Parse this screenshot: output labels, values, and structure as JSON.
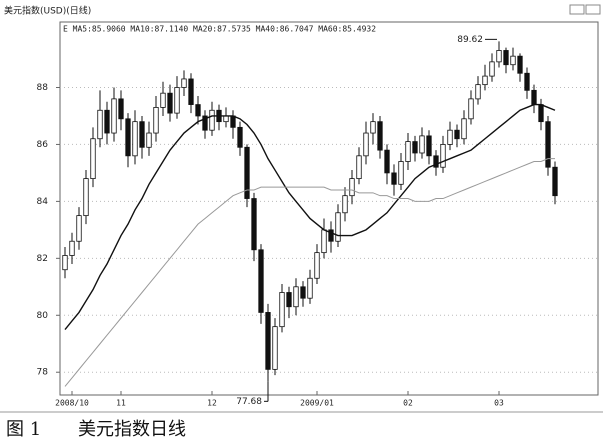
{
  "chart_data": {
    "type": "candlestick",
    "title": "美元指数(USD)(日线)",
    "legend_text": "E MA5:85.9060 MA10:87.1140 MA20:87.5735 MA40:86.7047 MA60:85.4932",
    "caption": "图 1",
    "caption_title": "美元指数日线",
    "categories": [
      null,
      "2008/10",
      null,
      null,
      null,
      null,
      null,
      null,
      "11",
      null,
      null,
      null,
      null,
      null,
      null,
      null,
      null,
      null,
      null,
      null,
      null,
      "12",
      null,
      null,
      null,
      null,
      null,
      null,
      null,
      null,
      null,
      null,
      null,
      null,
      null,
      null,
      "2009/01",
      null,
      null,
      null,
      null,
      null,
      null,
      null,
      null,
      null,
      null,
      null,
      null,
      "02",
      null,
      null,
      null,
      null,
      null,
      null,
      null,
      null,
      null,
      null,
      null,
      null,
      "03",
      null,
      null,
      null,
      null,
      null,
      null,
      null,
      null
    ],
    "open": [
      81.6,
      82.1,
      82.6,
      83.5,
      84.8,
      86.2,
      87.2,
      86.4,
      87.6,
      86.9,
      85.6,
      86.8,
      85.9,
      86.4,
      87.3,
      87.8,
      87.1,
      88.0,
      88.3,
      87.4,
      87.0,
      86.5,
      87.2,
      86.8,
      87.0,
      86.6,
      85.9,
      84.1,
      82.3,
      80.1,
      78.1,
      79.6,
      80.8,
      80.3,
      81.0,
      80.6,
      81.3,
      82.2,
      83.0,
      82.6,
      83.6,
      84.2,
      84.8,
      85.6,
      86.4,
      86.8,
      85.8,
      85.0,
      84.6,
      85.4,
      86.1,
      85.7,
      86.3,
      85.6,
      85.2,
      86.0,
      86.5,
      86.2,
      86.9,
      87.6,
      88.1,
      88.4,
      88.9,
      89.3,
      88.8,
      89.1,
      88.5,
      87.9,
      87.4,
      86.8,
      85.2
    ],
    "high": [
      82.4,
      82.9,
      83.8,
      85.1,
      86.6,
      87.9,
      87.5,
      88.0,
      87.9,
      87.1,
      87.2,
      87.0,
      86.8,
      87.7,
      88.2,
      88.1,
      88.4,
      88.6,
      88.5,
      87.7,
      87.2,
      87.5,
      87.4,
      87.3,
      87.2,
      86.8,
      86.0,
      84.3,
      82.5,
      80.4,
      79.9,
      81.1,
      81.0,
      81.3,
      81.2,
      81.6,
      82.5,
      83.4,
      83.3,
      83.9,
      84.5,
      85.1,
      85.9,
      86.8,
      87.1,
      87.0,
      86.0,
      85.3,
      85.7,
      86.4,
      86.3,
      86.6,
      86.5,
      85.8,
      86.3,
      86.8,
      86.7,
      87.2,
      87.9,
      88.4,
      88.8,
      89.2,
      89.62,
      89.4,
      89.4,
      89.2,
      88.7,
      88.1,
      87.6,
      87.0,
      85.4
    ],
    "low": [
      81.3,
      81.8,
      82.3,
      83.2,
      84.5,
      85.9,
      86.0,
      86.1,
      86.5,
      85.2,
      85.3,
      85.5,
      85.6,
      86.1,
      87.0,
      86.8,
      86.9,
      87.7,
      87.1,
      86.7,
      86.2,
      86.3,
      86.5,
      86.6,
      86.2,
      85.6,
      83.8,
      81.9,
      79.7,
      77.68,
      77.9,
      79.4,
      79.9,
      80.0,
      80.3,
      80.4,
      81.1,
      82.0,
      82.2,
      82.4,
      83.3,
      83.9,
      84.6,
      85.3,
      86.0,
      85.5,
      84.6,
      84.2,
      84.4,
      85.1,
      85.4,
      85.5,
      85.3,
      84.9,
      85.0,
      85.8,
      85.9,
      86.0,
      86.7,
      87.4,
      87.9,
      88.2,
      88.7,
      88.5,
      88.6,
      88.2,
      87.6,
      87.1,
      86.5,
      84.9,
      83.9
    ],
    "close": [
      82.1,
      82.6,
      83.5,
      84.8,
      86.2,
      87.2,
      86.4,
      87.6,
      86.9,
      85.6,
      86.8,
      85.9,
      86.4,
      87.3,
      87.8,
      87.1,
      88.0,
      88.3,
      87.4,
      87.0,
      86.5,
      87.2,
      86.8,
      87.0,
      86.6,
      85.9,
      84.1,
      82.3,
      80.1,
      78.1,
      79.6,
      80.8,
      80.3,
      81.0,
      80.6,
      81.3,
      82.2,
      83.0,
      82.6,
      83.6,
      84.2,
      84.8,
      85.6,
      86.4,
      86.8,
      85.8,
      85.0,
      84.6,
      85.4,
      86.1,
      85.7,
      86.3,
      85.6,
      85.2,
      86.0,
      86.5,
      86.2,
      86.9,
      87.6,
      88.1,
      88.4,
      88.9,
      89.3,
      88.8,
      89.1,
      88.5,
      87.9,
      87.4,
      86.8,
      85.2,
      84.2
    ],
    "series": [
      {
        "color": "#111111",
        "values": [
          79.5,
          79.8,
          80.1,
          80.5,
          80.9,
          81.4,
          81.8,
          82.3,
          82.8,
          83.2,
          83.7,
          84.1,
          84.6,
          85.0,
          85.4,
          85.8,
          86.1,
          86.4,
          86.6,
          86.8,
          86.9,
          87.0,
          87.0,
          87.0,
          87.0,
          86.9,
          86.7,
          86.4,
          86.0,
          85.5,
          85.1,
          84.7,
          84.3,
          84.0,
          83.7,
          83.4,
          83.2,
          83.0,
          82.9,
          82.8,
          82.8,
          82.8,
          82.9,
          83.0,
          83.2,
          83.4,
          83.6,
          83.9,
          84.2,
          84.5,
          84.8,
          85.0,
          85.2,
          85.3,
          85.4,
          85.5,
          85.6,
          85.7,
          85.8,
          86.0,
          86.2,
          86.4,
          86.6,
          86.8,
          87.0,
          87.2,
          87.3,
          87.4,
          87.4,
          87.3,
          87.2
        ]
      },
      {
        "color": "#999999",
        "values": [
          77.5,
          77.8,
          78.1,
          78.4,
          78.7,
          79.0,
          79.3,
          79.6,
          79.9,
          80.2,
          80.5,
          80.8,
          81.1,
          81.4,
          81.7,
          82.0,
          82.3,
          82.6,
          82.9,
          83.2,
          83.4,
          83.6,
          83.8,
          84.0,
          84.2,
          84.3,
          84.4,
          84.4,
          84.5,
          84.5,
          84.5,
          84.5,
          84.5,
          84.5,
          84.5,
          84.5,
          84.5,
          84.5,
          84.4,
          84.4,
          84.4,
          84.4,
          84.3,
          84.3,
          84.3,
          84.2,
          84.2,
          84.1,
          84.1,
          84.1,
          84.0,
          84.0,
          84.0,
          84.1,
          84.1,
          84.2,
          84.3,
          84.4,
          84.5,
          84.6,
          84.7,
          84.8,
          84.9,
          85.0,
          85.1,
          85.2,
          85.3,
          85.4,
          85.4,
          85.5,
          85.5
        ]
      }
    ],
    "ylim": [
      77.2,
      90.3
    ],
    "yticks": [
      78,
      80,
      82,
      84,
      86,
      88
    ],
    "grid": true
  }
}
